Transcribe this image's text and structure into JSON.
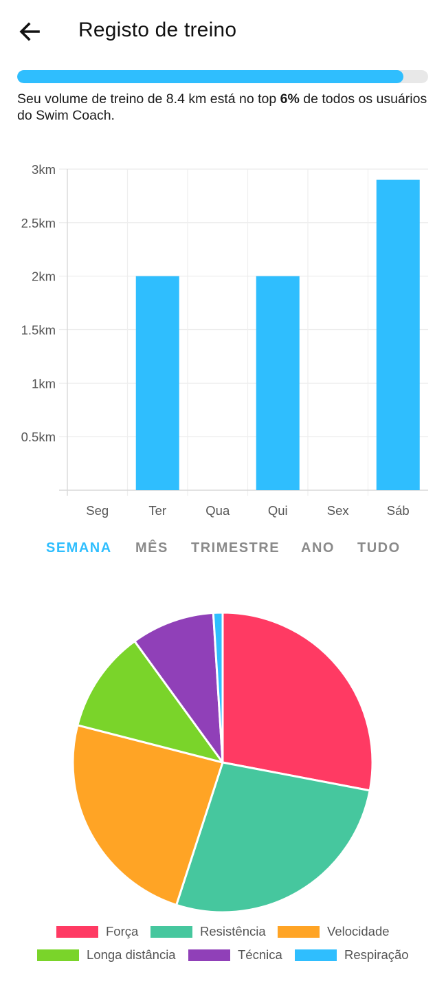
{
  "header": {
    "title": "Registo de treino"
  },
  "progress": {
    "fraction": 0.94
  },
  "rank": {
    "text_before": "Seu volume de treino de 8.4 km está no top ",
    "highlight": "6%",
    "text_after": " de todos os usuários do Swim Coach."
  },
  "chart_data": [
    {
      "type": "bar",
      "categories": [
        "Seg",
        "Ter",
        "Qua",
        "Qui",
        "Sex",
        "Sáb"
      ],
      "values": [
        0,
        2,
        0,
        2,
        0,
        2.9
      ],
      "ylim": [
        0,
        3
      ],
      "y_ticks": [
        "0.5km",
        "1km",
        "1.5km",
        "2km",
        "2.5km",
        "3km"
      ],
      "color": "#2fbefe",
      "grid": true
    },
    {
      "type": "pie",
      "labels": [
        "Força",
        "Resistência",
        "Velocidade",
        "Longa distância",
        "Técnica",
        "Respiração"
      ],
      "values": [
        28,
        27,
        24,
        11,
        9,
        1
      ],
      "colors": [
        "#ff3a63",
        "#46c79e",
        "#ffa425",
        "#7ad42a",
        "#9040b8",
        "#2fbefe"
      ],
      "legend_placement": "bottom"
    }
  ],
  "tabs": [
    {
      "label": "SEMANA",
      "active": true
    },
    {
      "label": "MÊS",
      "active": false
    },
    {
      "label": "TRIMESTRE",
      "active": false
    },
    {
      "label": "ANO",
      "active": false
    },
    {
      "label": "TUDO",
      "active": false
    }
  ],
  "icons": {
    "back": "arrow-left-icon"
  }
}
